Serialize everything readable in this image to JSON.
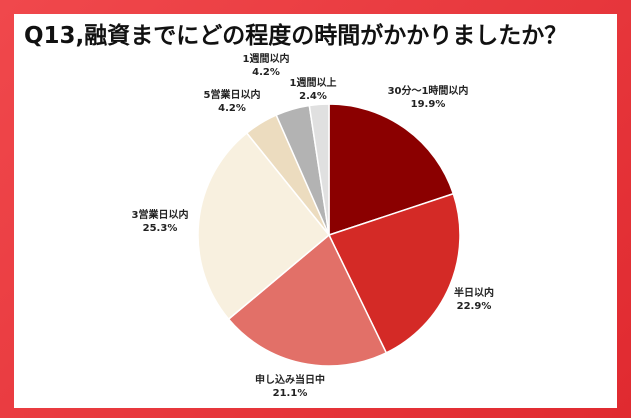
{
  "title": "Q13,融資までにどの程度の時間がかかりましたか？",
  "chart_data": {
    "type": "pie",
    "title": "Q13,融資までにどの程度の時間がかかりましたか？",
    "start_angle_deg": 0,
    "direction": "clockwise",
    "slices": [
      {
        "label": "30分〜1時間以内",
        "value": 19.9,
        "display": "19.9%",
        "color": "#8b0000"
      },
      {
        "label": "半日以内",
        "value": 22.9,
        "display": "22.9%",
        "color": "#d42a26"
      },
      {
        "label": "申し込み当日中",
        "value": 21.1,
        "display": "21.1%",
        "color": "#e27068"
      },
      {
        "label": "3営業日以内",
        "value": 25.3,
        "display": "25.3%",
        "color": "#f8f0df"
      },
      {
        "label": "5営業日以内",
        "value": 4.2,
        "display": "4.2%",
        "color": "#ecdcbf"
      },
      {
        "label": "1週間以内",
        "value": 4.2,
        "display": "4.2%",
        "color": "#b3b3b3"
      },
      {
        "label": "1週間以上",
        "value": 2.4,
        "display": "2.4%",
        "color": "#e0e0e0"
      }
    ]
  }
}
